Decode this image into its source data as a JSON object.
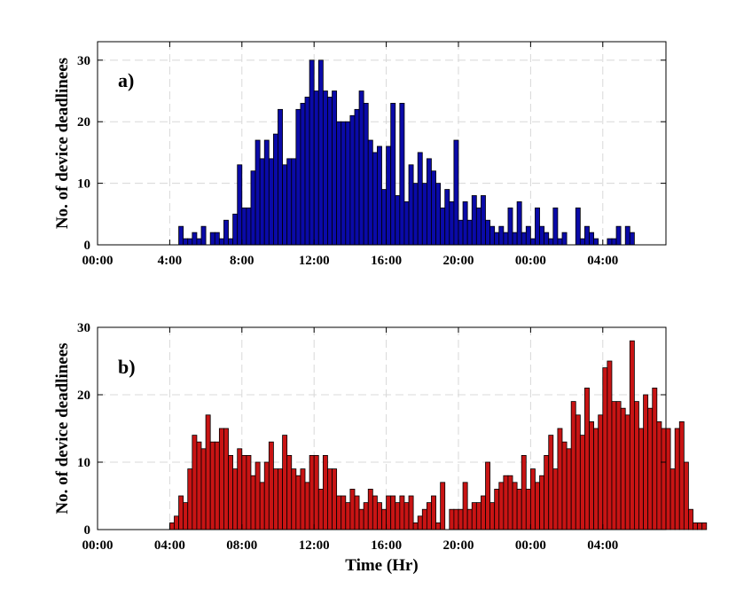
{
  "chart_data": [
    {
      "type": "bar",
      "panel_label": "a)",
      "ylabel": "No. of device deadlinees",
      "xlabel": "",
      "bar_color": "#0a0aa8",
      "bin_width_hours": 0.25,
      "x_start_hours": 4.5,
      "ylim": [
        0,
        33
      ],
      "yticks": [
        0,
        10,
        20,
        30
      ],
      "xlim_hours": [
        0,
        31.5
      ],
      "xticks_hours": [
        0,
        4,
        8,
        12,
        16,
        20,
        24,
        28
      ],
      "xtick_labels": [
        "00:00",
        "4:00",
        "8:00",
        "12:00",
        "16:00",
        "20:00",
        "00:00",
        "04:00"
      ],
      "grid": true,
      "values": [
        3,
        1,
        1,
        2,
        1,
        3,
        0,
        2,
        2,
        1,
        4,
        1,
        5,
        13,
        6,
        6,
        12,
        17,
        14,
        17,
        14,
        18,
        22,
        13,
        14,
        14,
        22,
        23,
        24,
        30,
        25,
        30,
        25,
        24,
        25,
        20,
        20,
        20,
        21,
        22,
        25,
        23,
        17,
        15,
        16,
        9,
        16,
        23,
        8,
        23,
        7,
        13,
        10,
        15,
        10,
        14,
        12,
        10,
        6,
        9,
        7,
        17,
        4,
        7,
        4,
        8,
        6,
        8,
        4,
        3,
        2,
        3,
        2,
        6,
        2,
        7,
        2,
        3,
        1,
        6,
        3,
        2,
        1,
        6,
        1,
        2,
        0,
        0,
        6,
        1,
        3,
        2,
        1,
        0,
        0,
        1,
        1,
        3,
        0,
        3,
        2
      ],
      "max_value_series": "a"
    },
    {
      "type": "bar",
      "panel_label": "b)",
      "ylabel": "No. of device deadlinees",
      "xlabel": "Time (Hr)",
      "bar_color": "#c81414",
      "bin_width_hours": 0.25,
      "x_start_hours": 4.0,
      "ylim": [
        0,
        30
      ],
      "yticks": [
        0,
        10,
        20,
        30
      ],
      "xlim_hours": [
        0,
        31.5
      ],
      "xticks_hours": [
        0,
        4,
        8,
        12,
        16,
        20,
        24,
        28
      ],
      "xtick_labels": [
        "00:00",
        "04:00",
        "08:00",
        "12:00",
        "16:00",
        "20:00",
        "00:00",
        "04:00"
      ],
      "grid": true,
      "values": [
        1,
        2,
        5,
        4,
        9,
        14,
        13,
        12,
        17,
        13,
        13,
        15,
        15,
        11,
        9,
        12,
        11,
        11,
        8,
        10,
        7,
        10,
        13,
        9,
        9,
        14,
        11,
        9,
        8,
        9,
        7,
        11,
        11,
        6,
        11,
        9,
        9,
        5,
        5,
        4,
        6,
        5,
        3,
        4,
        6,
        5,
        4,
        3,
        5,
        5,
        4,
        5,
        4,
        5,
        1,
        2,
        3,
        4,
        5,
        1,
        7,
        0,
        3,
        3,
        3,
        7,
        3,
        4,
        4,
        5,
        10,
        4,
        6,
        7,
        8,
        8,
        7,
        6,
        11,
        6,
        9,
        7,
        8,
        11,
        14,
        9,
        15,
        13,
        12,
        19,
        17,
        14,
        21,
        16,
        15,
        17,
        24,
        25,
        19,
        19,
        18,
        17,
        28,
        19,
        15,
        20,
        18,
        21,
        16,
        15,
        15,
        9,
        15,
        16,
        10,
        3,
        1,
        1,
        1
      ]
    }
  ]
}
